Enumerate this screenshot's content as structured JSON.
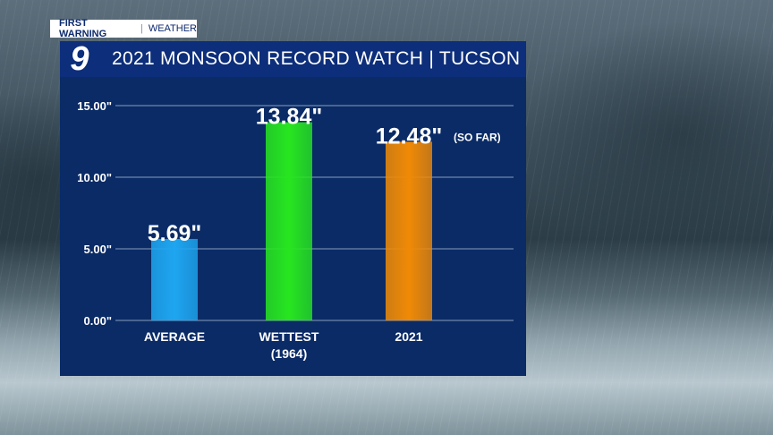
{
  "badge": {
    "primary": "FIRST WARNING",
    "separator": "|",
    "secondary": "WEATHER"
  },
  "logo": {
    "text": "9",
    "color": "#ffffff"
  },
  "header": {
    "title": "2021 MONSOON RECORD WATCH | TUCSON",
    "background": "#0d2e7a"
  },
  "chart_data": {
    "type": "bar",
    "title": "2021 MONSOON RECORD WATCH | TUCSON",
    "categories": [
      "AVERAGE",
      "WETTEST (1964)",
      "2021"
    ],
    "category_lines": [
      [
        "AVERAGE"
      ],
      [
        "WETTEST",
        "(1964)"
      ],
      [
        "2021"
      ]
    ],
    "values": [
      5.69,
      13.84,
      12.48
    ],
    "value_labels": [
      "5.69\"",
      "13.84\"",
      "12.48\""
    ],
    "annotations": [
      "",
      "",
      "(SO FAR)"
    ],
    "bar_colors": [
      "#1ea6f0",
      "#27e61f",
      "#f08a06"
    ],
    "yticks": [
      0,
      5,
      10,
      15
    ],
    "ytick_labels": [
      "0.00\"",
      "5.00\"",
      "10.00\"",
      "15.00\""
    ],
    "ylim": [
      0,
      15
    ],
    "grid": true,
    "xlabel": "",
    "ylabel": ""
  }
}
